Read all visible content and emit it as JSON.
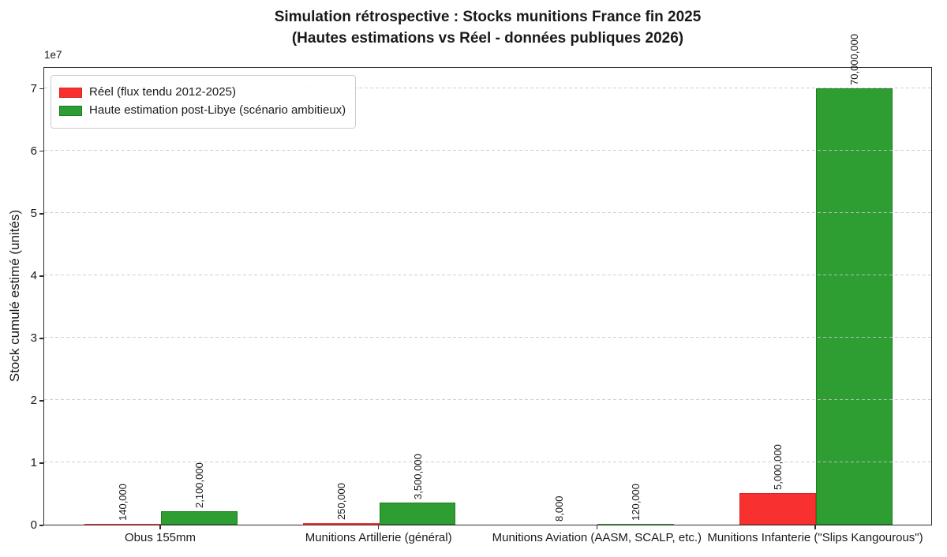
{
  "title": {
    "line1": "Simulation rétrospective : Stocks munitions France fin 2025",
    "line2": "(Hautes estimations vs Réel - données publiques 2026)"
  },
  "chart_data": {
    "type": "bar",
    "title": "Simulation rétrospective : Stocks munitions France fin 2025 (Hautes estimations vs Réel - données publiques 2026)",
    "categories": [
      "Obus 155mm",
      "Munitions Artillerie (général)",
      "Munitions Aviation (AASM, SCALP, etc.)",
      "Munitions Infanterie (\"Slips Kangourous\")"
    ],
    "series": [
      {
        "name": "Réel (flux tendu 2012-2025)",
        "color": "#f93030",
        "edge_color": "#d42424",
        "values": [
          140000,
          250000,
          8000,
          5000000
        ],
        "value_labels": [
          "140,000",
          "250,000",
          "8,000",
          "5,000,000"
        ]
      },
      {
        "name": "Haute estimation post-Libye (scénario ambitieux)",
        "color": "#2e9e32",
        "edge_color": "#1f7a23",
        "values": [
          2100000,
          3500000,
          120000,
          70000000
        ],
        "value_labels": [
          "2,100,000",
          "3,500,000",
          "120,000",
          "70,000,000"
        ]
      }
    ],
    "xlabel": "",
    "ylabel": "Stock cumulé estimé (unités)",
    "y_offset_label": "1e7",
    "ytick_labels": [
      "0",
      "1",
      "2",
      "3",
      "4",
      "5",
      "6",
      "7"
    ],
    "yticks": [
      0,
      10000000,
      20000000,
      30000000,
      40000000,
      50000000,
      60000000,
      70000000
    ],
    "ylim": [
      0,
      73500000
    ],
    "xlim": [
      -0.535,
      3.535
    ],
    "bar_width": 0.35,
    "grid": "horizontal-dashed",
    "grid_color": "#c6c6c6",
    "legend_position": "upper-left",
    "text_color": "#1a1a1a",
    "spine_color": "#2e2e2e"
  }
}
